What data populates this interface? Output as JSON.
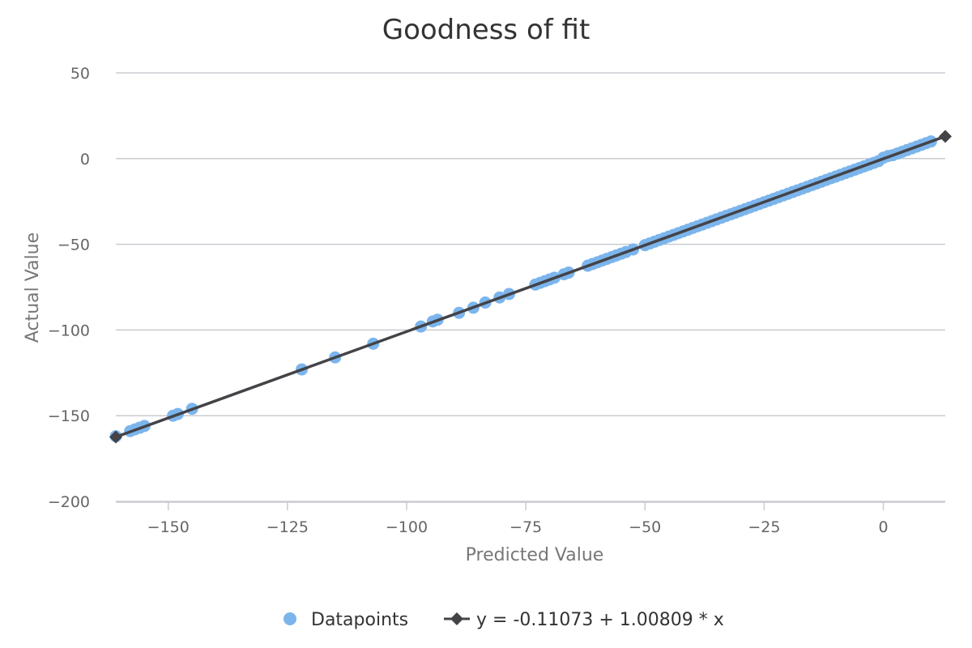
{
  "chart_data": {
    "type": "scatter",
    "title": "Goodness of fit",
    "xlabel": "Predicted Value",
    "ylabel": "Actual Value",
    "xlim": [
      -161,
      13
    ],
    "ylim": [
      -200,
      50
    ],
    "x_ticks": [
      -150,
      -125,
      -100,
      -75,
      -50,
      -25,
      0
    ],
    "y_ticks": [
      50,
      0,
      -50,
      -100,
      -150,
      -200
    ],
    "grid": true,
    "legend_position": "bottom",
    "colors": {
      "points": "#7cb5ec",
      "line": "#434348"
    },
    "series": [
      {
        "name": "Datapoints",
        "kind": "scatter",
        "points": [
          [
            -161.0,
            -162.0
          ],
          [
            -158.0,
            -159.0
          ],
          [
            -157.0,
            -158.0
          ],
          [
            -156.0,
            -157.0
          ],
          [
            -155.0,
            -156.0
          ],
          [
            -149.0,
            -150.0
          ],
          [
            -148.0,
            -149.0
          ],
          [
            -145.0,
            -146.0
          ],
          [
            -122.0,
            -123.0
          ],
          [
            -115.0,
            -116.0
          ],
          [
            -107.0,
            -108.0
          ],
          [
            -97.0,
            -98.0
          ],
          [
            -94.5,
            -95.0
          ],
          [
            -93.5,
            -94.0
          ],
          [
            -89.0,
            -90.0
          ],
          [
            -86.0,
            -87.0
          ],
          [
            -83.5,
            -84.0
          ],
          [
            -80.5,
            -81.0
          ],
          [
            -78.5,
            -79.0
          ],
          [
            -73.0,
            -73.5
          ],
          [
            -72.0,
            -72.5
          ],
          [
            -71.0,
            -71.5
          ],
          [
            -70.0,
            -70.5
          ],
          [
            -69.0,
            -69.5
          ],
          [
            -67.0,
            -67.5
          ],
          [
            -66.0,
            -66.5
          ],
          [
            -62.0,
            -62.5
          ],
          [
            -61.0,
            -61.5
          ],
          [
            -60.0,
            -60.5
          ],
          [
            -59.0,
            -59.5
          ],
          [
            -58.0,
            -58.5
          ],
          [
            -57.0,
            -57.5
          ],
          [
            -56.0,
            -56.5
          ],
          [
            -55.0,
            -55.5
          ],
          [
            -54.0,
            -54.5
          ],
          [
            -52.5,
            -53.0
          ],
          [
            -50.0,
            -50.5
          ],
          [
            -49.0,
            -49.5
          ],
          [
            -48.0,
            -48.5
          ],
          [
            -47.0,
            -47.5
          ],
          [
            -46.0,
            -46.5
          ],
          [
            -45.0,
            -45.5
          ],
          [
            -44.0,
            -44.5
          ],
          [
            -43.0,
            -43.5
          ],
          [
            -42.0,
            -42.5
          ],
          [
            -41.0,
            -41.5
          ],
          [
            -40.0,
            -40.5
          ],
          [
            -39.0,
            -39.5
          ],
          [
            -38.0,
            -38.5
          ],
          [
            -37.0,
            -37.5
          ],
          [
            -36.0,
            -36.5
          ],
          [
            -35.0,
            -35.5
          ],
          [
            -34.0,
            -34.5
          ],
          [
            -33.0,
            -33.5
          ],
          [
            -32.0,
            -32.5
          ],
          [
            -31.0,
            -31.5
          ],
          [
            -30.0,
            -30.5
          ],
          [
            -29.0,
            -29.5
          ],
          [
            -28.0,
            -28.5
          ],
          [
            -27.0,
            -27.5
          ],
          [
            -26.0,
            -26.5
          ],
          [
            -25.0,
            -25.5
          ],
          [
            -24.0,
            -24.5
          ],
          [
            -23.0,
            -23.5
          ],
          [
            -22.0,
            -22.5
          ],
          [
            -21.0,
            -21.5
          ],
          [
            -20.0,
            -20.5
          ],
          [
            -19.0,
            -19.5
          ],
          [
            -18.0,
            -18.5
          ],
          [
            -17.0,
            -17.5
          ],
          [
            -16.0,
            -16.5
          ],
          [
            -15.0,
            -15.5
          ],
          [
            -14.0,
            -14.5
          ],
          [
            -13.0,
            -13.5
          ],
          [
            -12.0,
            -12.5
          ],
          [
            -11.0,
            -11.5
          ],
          [
            -10.0,
            -10.5
          ],
          [
            -9.0,
            -9.5
          ],
          [
            -8.0,
            -8.5
          ],
          [
            -7.0,
            -7.5
          ],
          [
            -6.0,
            -6.5
          ],
          [
            -5.0,
            -5.5
          ],
          [
            -4.0,
            -4.5
          ],
          [
            -3.0,
            -3.5
          ],
          [
            -2.0,
            -2.5
          ],
          [
            -1.0,
            -1.5
          ],
          [
            0.0,
            0.5
          ],
          [
            1.0,
            1.5
          ],
          [
            2.0,
            2.0
          ],
          [
            3.0,
            3.0
          ],
          [
            4.0,
            4.0
          ],
          [
            5.0,
            5.0
          ],
          [
            6.0,
            6.0
          ],
          [
            7.0,
            7.0
          ],
          [
            8.0,
            8.0
          ],
          [
            9.0,
            9.0
          ],
          [
            10.0,
            10.0
          ]
        ]
      },
      {
        "name": "y = -0.11073 + 1.00809 * x",
        "kind": "line",
        "points": [
          [
            -161.0,
            -162.41
          ],
          [
            13.0,
            12.99
          ]
        ]
      }
    ]
  }
}
